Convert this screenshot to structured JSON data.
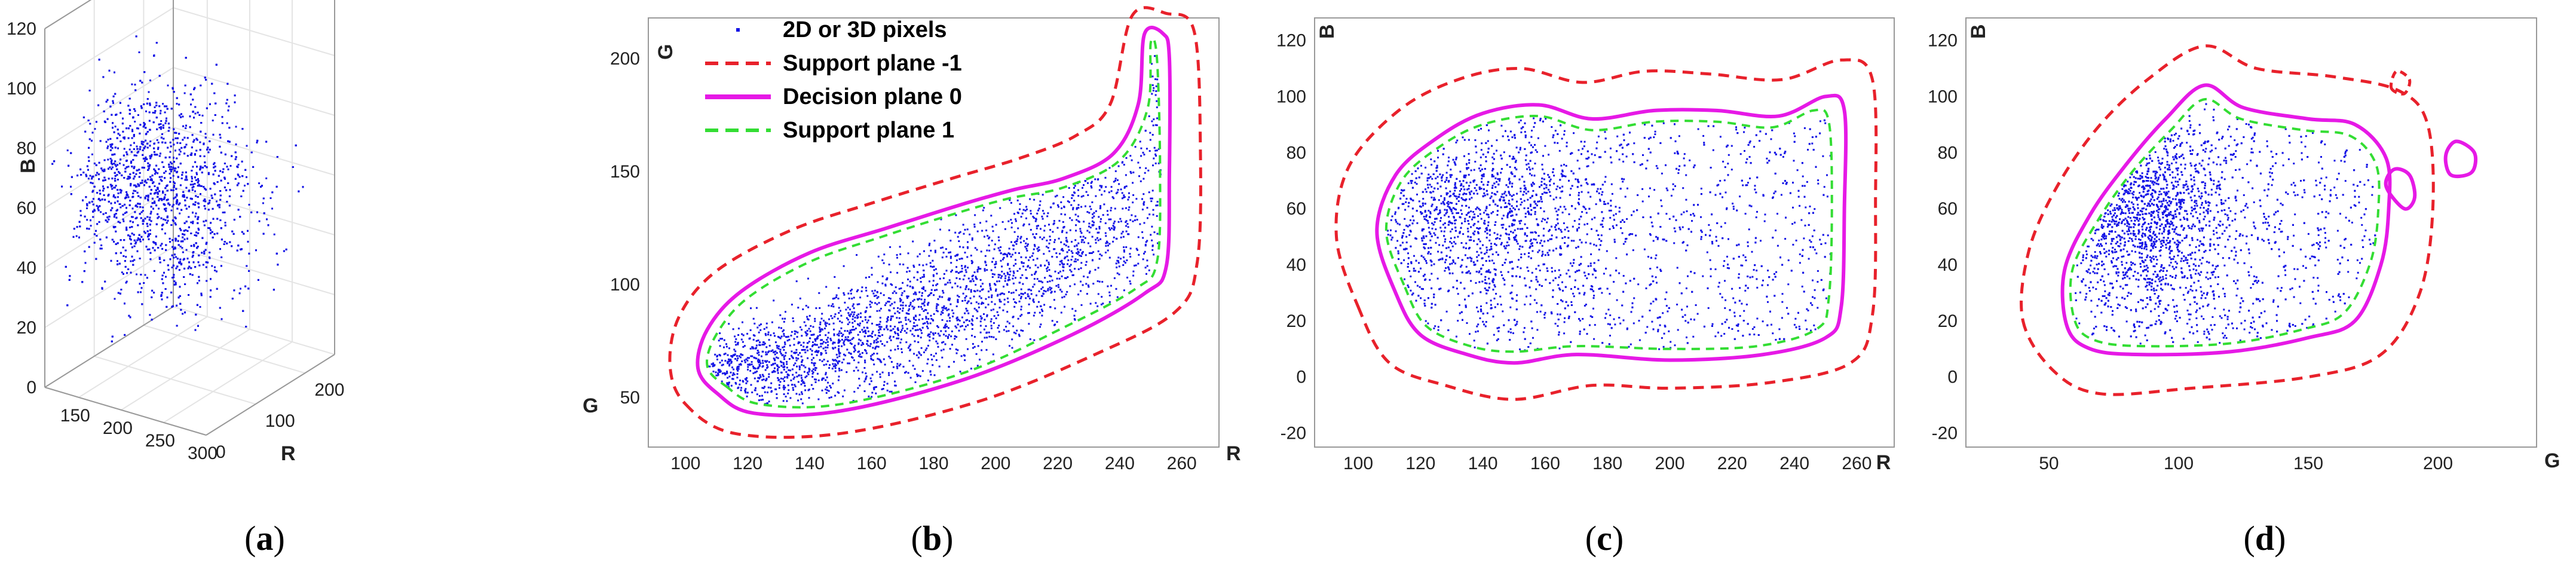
{
  "colors": {
    "pixels": "#1414e6",
    "support_neg": "#e8212b",
    "decision": "#e619e6",
    "support_pos": "#33dd33",
    "axis": "#999999",
    "grid": "#e4e4e4"
  },
  "captions": [
    "a",
    "b",
    "c",
    "d"
  ],
  "chart_data": [
    {
      "panel": "a",
      "type": "scatter",
      "projection": "3d",
      "series": [
        {
          "marker": "dot",
          "color": "#1414e6"
        }
      ],
      "xlabel": "R",
      "ylabel": "G",
      "zlabel": "B",
      "x_ticks": [
        "150",
        "200",
        "250",
        "300"
      ],
      "y_ticks": [
        "0",
        "100",
        "200"
      ],
      "z_ticks": [
        "0",
        "20",
        "40",
        "60",
        "80",
        "100",
        "120"
      ],
      "xlim": [
        110,
        300
      ],
      "ylim": [
        0,
        260
      ],
      "zlim": [
        0,
        120
      ],
      "grid": true,
      "cloud": {
        "r_center": 200,
        "g_center": 120,
        "b_center": 55
      }
    },
    {
      "panel": "b",
      "type": "scatter",
      "xlabel": "R",
      "ylabel": "G",
      "x_ticks": [
        "100",
        "120",
        "140",
        "160",
        "180",
        "200",
        "220",
        "240",
        "260"
      ],
      "y_ticks": [
        "50",
        "100",
        "150",
        "200"
      ],
      "xlim": [
        88,
        272
      ],
      "ylim": [
        28,
        218
      ],
      "grid": false,
      "legend_position": "top-left",
      "legend": [
        {
          "label": "2D or 3D pixels",
          "style": "dot",
          "color": "#1414e6"
        },
        {
          "label": "Support plane -1",
          "style": "dashed",
          "color": "#e8212b"
        },
        {
          "label": "Decision plane 0",
          "style": "solid",
          "color": "#e619e6"
        },
        {
          "label": "Support plane 1",
          "style": "dashed",
          "color": "#33dd33"
        }
      ],
      "point_cloud": {
        "center": [
          175,
          92
        ],
        "spread": "elongated along rising diagonal",
        "x_range": [
          105,
          258
        ],
        "y_range": [
          45,
          210
        ]
      },
      "contours": {
        "decision": [
          [
            110,
            52
          ],
          [
            122,
            43
          ],
          [
            150,
            44
          ],
          [
            190,
            58
          ],
          [
            225,
            78
          ],
          [
            248,
            96
          ],
          [
            255,
            108
          ],
          [
            256,
            150
          ],
          [
            256,
            200
          ],
          [
            254,
            211
          ],
          [
            248,
            211
          ],
          [
            246,
            180
          ],
          [
            238,
            158
          ],
          [
            222,
            147
          ],
          [
            206,
            142
          ],
          [
            188,
            135
          ],
          [
            165,
            125
          ],
          [
            140,
            114
          ],
          [
            118,
            97
          ],
          [
            107,
            80
          ],
          [
            104,
            63
          ]
        ],
        "support_pos": [
          [
            113,
            55
          ],
          [
            124,
            47
          ],
          [
            150,
            47
          ],
          [
            190,
            61
          ],
          [
            222,
            81
          ],
          [
            245,
            98
          ],
          [
            252,
            110
          ],
          [
            253,
            150
          ],
          [
            252,
            200
          ],
          [
            250,
            207
          ],
          [
            249,
            178
          ],
          [
            240,
            155
          ],
          [
            222,
            143
          ],
          [
            204,
            138
          ],
          [
            186,
            131
          ],
          [
            163,
            121
          ],
          [
            140,
            110
          ],
          [
            120,
            94
          ],
          [
            110,
            78
          ],
          [
            107,
            64
          ]
        ],
        "support_neg": [
          [
            100,
            47
          ],
          [
            116,
            34
          ],
          [
            150,
            34
          ],
          [
            194,
            48
          ],
          [
            232,
            69
          ],
          [
            258,
            88
          ],
          [
            265,
            110
          ],
          [
            266,
            160
          ],
          [
            264,
            212
          ],
          [
            255,
            220
          ],
          [
            244,
            219
          ],
          [
            237,
            180
          ],
          [
            226,
            166
          ],
          [
            208,
            156
          ],
          [
            186,
            147
          ],
          [
            160,
            136
          ],
          [
            134,
            124
          ],
          [
            110,
            106
          ],
          [
            98,
            86
          ],
          [
            95,
            64
          ]
        ]
      }
    },
    {
      "panel": "c",
      "type": "scatter",
      "xlabel": "R",
      "ylabel": "B",
      "x_ticks": [
        "100",
        "120",
        "140",
        "160",
        "180",
        "200",
        "220",
        "240",
        "260",
        "R"
      ],
      "y_ticks": [
        "-20",
        "0",
        "20",
        "40",
        "60",
        "80",
        "100",
        "120"
      ],
      "xlim": [
        86,
        272
      ],
      "ylim": [
        -25,
        128
      ],
      "grid": false,
      "point_cloud": {
        "center": [
          175,
          50
        ],
        "x_range": [
          105,
          256
        ],
        "y_range": [
          5,
          100
        ]
      },
      "contours": {
        "decision": [
          [
            112,
            30
          ],
          [
            120,
            15
          ],
          [
            135,
            8
          ],
          [
            150,
            5
          ],
          [
            170,
            8
          ],
          [
            200,
            6
          ],
          [
            230,
            8
          ],
          [
            250,
            14
          ],
          [
            255,
            25
          ],
          [
            256,
            60
          ],
          [
            256,
            95
          ],
          [
            250,
            100
          ],
          [
            235,
            93
          ],
          [
            215,
            95
          ],
          [
            195,
            95
          ],
          [
            175,
            92
          ],
          [
            158,
            97
          ],
          [
            140,
            94
          ],
          [
            125,
            85
          ],
          [
            112,
            72
          ],
          [
            106,
            52
          ]
        ],
        "support_pos": [
          [
            115,
            32
          ],
          [
            122,
            18
          ],
          [
            136,
            11
          ],
          [
            150,
            9
          ],
          [
            170,
            11
          ],
          [
            200,
            10
          ],
          [
            228,
            11
          ],
          [
            247,
            17
          ],
          [
            251,
            28
          ],
          [
            252,
            62
          ],
          [
            251,
            91
          ],
          [
            246,
            95
          ],
          [
            233,
            89
          ],
          [
            215,
            91
          ],
          [
            195,
            91
          ],
          [
            175,
            88
          ],
          [
            158,
            93
          ],
          [
            140,
            90
          ],
          [
            126,
            82
          ],
          [
            114,
            70
          ],
          [
            109,
            52
          ]
        ],
        "support_neg": [
          [
            100,
            25
          ],
          [
            110,
            5
          ],
          [
            128,
            -3
          ],
          [
            150,
            -8
          ],
          [
            175,
            -3
          ],
          [
            200,
            -4
          ],
          [
            232,
            -2
          ],
          [
            258,
            5
          ],
          [
            265,
            22
          ],
          [
            266,
            62
          ],
          [
            265,
            106
          ],
          [
            255,
            113
          ],
          [
            236,
            106
          ],
          [
            213,
            108
          ],
          [
            192,
            109
          ],
          [
            172,
            105
          ],
          [
            152,
            110
          ],
          [
            132,
            106
          ],
          [
            113,
            95
          ],
          [
            97,
            75
          ],
          [
            93,
            50
          ]
        ]
      }
    },
    {
      "panel": "d",
      "type": "scatter",
      "xlabel": "G",
      "ylabel": "B",
      "x_ticks": [
        "50",
        "100",
        "150",
        "200"
      ],
      "y_ticks": [
        "-20",
        "0",
        "20",
        "40",
        "60",
        "80",
        "100",
        "120"
      ],
      "xlim": [
        18,
        238
      ],
      "ylim": [
        -25,
        128
      ],
      "grid": false,
      "point_cloud": {
        "center": [
          95,
          50
        ],
        "x_range": [
          55,
          180
        ],
        "y_range": [
          5,
          100
        ]
      },
      "contours": {
        "decision": [
          [
            57,
            18
          ],
          [
            66,
            10
          ],
          [
            85,
            8
          ],
          [
            120,
            9
          ],
          [
            150,
            14
          ],
          [
            168,
            20
          ],
          [
            178,
            40
          ],
          [
            181,
            60
          ],
          [
            180,
            78
          ],
          [
            168,
            90
          ],
          [
            150,
            92
          ],
          [
            125,
            96
          ],
          [
            110,
            104
          ],
          [
            95,
            92
          ],
          [
            80,
            76
          ],
          [
            66,
            58
          ],
          [
            56,
            38
          ]
        ],
        "support_pos": [
          [
            60,
            20
          ],
          [
            68,
            13
          ],
          [
            86,
            11
          ],
          [
            120,
            12
          ],
          [
            148,
            17
          ],
          [
            164,
            23
          ],
          [
            174,
            41
          ],
          [
            177,
            60
          ],
          [
            176,
            76
          ],
          [
            166,
            86
          ],
          [
            148,
            88
          ],
          [
            124,
            92
          ],
          [
            110,
            99
          ],
          [
            97,
            88
          ],
          [
            82,
            73
          ],
          [
            69,
            56
          ],
          [
            59,
            38
          ]
        ],
        "support_neg": [
          [
            40,
            20
          ],
          [
            52,
            2
          ],
          [
            70,
            -6
          ],
          [
            105,
            -4
          ],
          [
            150,
            0
          ],
          [
            178,
            8
          ],
          [
            193,
            30
          ],
          [
            198,
            60
          ],
          [
            196,
            90
          ],
          [
            185,
            102
          ],
          [
            160,
            107
          ],
          [
            130,
            110
          ],
          [
            110,
            118
          ],
          [
            88,
            106
          ],
          [
            68,
            88
          ],
          [
            52,
            66
          ],
          [
            42,
            44
          ]
        ],
        "decision_islands": [
          [
            [
              187,
              60
            ],
            [
              191,
              64
            ],
            [
              189,
              72
            ],
            [
              183,
              74
            ],
            [
              180,
              68
            ]
          ],
          [
            [
              205,
              72
            ],
            [
              213,
              73
            ],
            [
              214,
              80
            ],
            [
              207,
              84
            ],
            [
              203,
              79
            ]
          ]
        ],
        "support_neg_islands": [
          [
            [
              182,
              103
            ],
            [
              187,
              101
            ],
            [
              189,
              106
            ],
            [
              184,
              109
            ]
          ]
        ]
      }
    }
  ]
}
